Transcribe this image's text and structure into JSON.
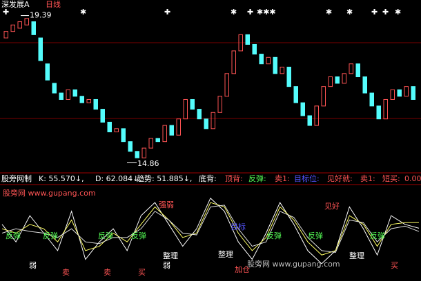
{
  "chart_data": [
    {
      "type": "candlestick",
      "title": "深发展A",
      "subtitle": "日线",
      "ylim": [
        14.6,
        19.7
      ],
      "up_color": "#ff5454",
      "down_color": "#54fcfc",
      "max_label": 19.39,
      "min_label": 14.86,
      "open": [
        18.7,
        18.9,
        19.0,
        19.1,
        19.2,
        18.7,
        17.9,
        17.3,
        17.0,
        16.8,
        17.1,
        16.9,
        16.7,
        16.8,
        16.5,
        16.1,
        15.8,
        15.9,
        15.5,
        15.2,
        15.0,
        15.3,
        15.6,
        15.5,
        16.0,
        15.7,
        16.2,
        16.8,
        16.5,
        16.2,
        15.9,
        16.4,
        16.9,
        17.6,
        18.3,
        18.8,
        18.5,
        18.2,
        17.9,
        18.1,
        17.6,
        17.8,
        17.2,
        16.7,
        16.3,
        16.0,
        16.6,
        17.2,
        17.5,
        17.3,
        17.6,
        17.9,
        17.5,
        17.0,
        16.6,
        16.2,
        16.8,
        17.1,
        16.9,
        17.2
      ],
      "close": [
        18.9,
        19.1,
        19.2,
        19.3,
        18.8,
        18.0,
        17.4,
        17.0,
        16.8,
        17.1,
        16.9,
        16.7,
        16.8,
        16.5,
        16.1,
        15.8,
        15.9,
        15.5,
        15.2,
        15.0,
        15.3,
        15.6,
        15.5,
        16.0,
        15.7,
        16.2,
        16.8,
        16.5,
        16.2,
        15.9,
        16.4,
        16.9,
        17.6,
        18.3,
        18.8,
        18.5,
        18.2,
        17.9,
        18.1,
        17.6,
        17.8,
        17.2,
        16.7,
        16.3,
        16.0,
        16.6,
        17.2,
        17.5,
        17.3,
        17.6,
        17.9,
        17.5,
        17.0,
        16.6,
        16.2,
        16.8,
        17.1,
        16.9,
        17.2,
        16.8
      ]
    },
    {
      "type": "line",
      "title": "股旁网制",
      "header": [
        "K: 55.570↓,",
        "D: 62.084↓,",
        "趋势: 51.885↓,",
        "底背:",
        "顶背:",
        "反弹:",
        "卖1:",
        "目标位:",
        "见好就:",
        "卖1:",
        "短买:",
        "0.00"
      ],
      "site": "股旁网 www.gupang.com",
      "ylim": [
        0,
        100
      ],
      "series": [
        {
          "name": "K",
          "color": "#ffffff",
          "values": [
            60,
            40,
            70,
            50,
            30,
            75,
            20,
            40,
            55,
            30,
            70,
            85,
            60,
            35,
            55,
            90,
            75,
            40,
            20,
            50,
            85,
            60,
            30,
            15,
            30,
            80,
            55,
            25,
            70,
            60,
            55.6
          ]
        },
        {
          "name": "D",
          "color": "#ffff66",
          "values": [
            55,
            50,
            60,
            55,
            40,
            65,
            30,
            35,
            50,
            40,
            60,
            80,
            65,
            45,
            50,
            85,
            80,
            50,
            30,
            45,
            80,
            65,
            40,
            25,
            30,
            70,
            60,
            35,
            60,
            62,
            62.1
          ]
        },
        {
          "name": "趋势",
          "color": "#e0e0e0",
          "values": [
            50,
            55,
            52,
            50,
            45,
            55,
            40,
            38,
            45,
            45,
            55,
            75,
            65,
            50,
            48,
            80,
            82,
            55,
            35,
            40,
            75,
            68,
            45,
            30,
            28,
            65,
            62,
            40,
            55,
            58,
            51.9
          ]
        }
      ],
      "annotations": [
        "反弹",
        "反弹",
        "反弹",
        "反弹",
        "强弱",
        "整理",
        "弱",
        "整理",
        "卖",
        "买",
        "见好",
        "目标",
        "反弹",
        "反弹",
        "反弹",
        "弱",
        "卖",
        "买",
        "整理",
        "加仓"
      ],
      "watermark": "股旁网 www.gupang.com"
    }
  ]
}
